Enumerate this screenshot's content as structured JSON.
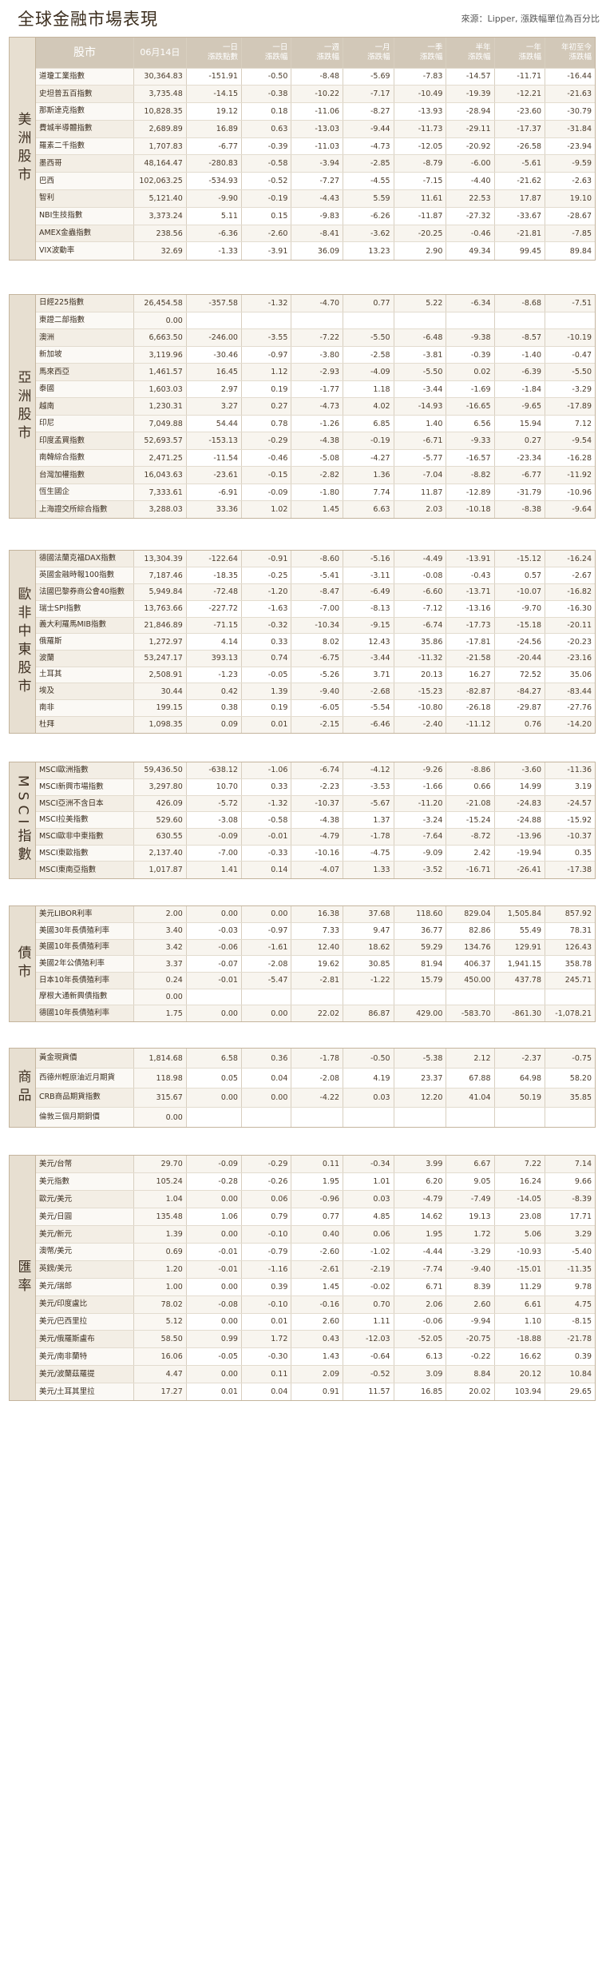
{
  "title": "全球金融市場表現",
  "source": "來源：Lipper, 漲跌幅單位為百分比",
  "header": {
    "name": "股市",
    "date": "06月14日",
    "cols": [
      "一日\n漲跌點數",
      "一日\n漲跌幅",
      "一週\n漲跌幅",
      "一月\n漲跌幅",
      "一季\n漲跌幅",
      "半年\n漲跌幅",
      "一年\n漲跌幅",
      "年初至今\n漲跌幅"
    ]
  },
  "sections": [
    {
      "label": "美洲股市",
      "rows": [
        [
          "道瓊工業指數",
          "30,364.83",
          "-151.91",
          "-0.50",
          "-8.48",
          "-5.69",
          "-7.83",
          "-14.57",
          "-11.71",
          "-16.44"
        ],
        [
          "史坦普五百指數",
          "3,735.48",
          "-14.15",
          "-0.38",
          "-10.22",
          "-7.17",
          "-10.49",
          "-19.39",
          "-12.21",
          "-21.63"
        ],
        [
          "那斯達克指數",
          "10,828.35",
          "19.12",
          "0.18",
          "-11.06",
          "-8.27",
          "-13.93",
          "-28.94",
          "-23.60",
          "-30.79"
        ],
        [
          "費城半導體指數",
          "2,689.89",
          "16.89",
          "0.63",
          "-13.03",
          "-9.44",
          "-11.73",
          "-29.11",
          "-17.37",
          "-31.84"
        ],
        [
          "羅素二千指數",
          "1,707.83",
          "-6.77",
          "-0.39",
          "-11.03",
          "-4.73",
          "-12.05",
          "-20.92",
          "-26.58",
          "-23.94"
        ],
        [
          "墨西哥",
          "48,164.47",
          "-280.83",
          "-0.58",
          "-3.94",
          "-2.85",
          "-8.79",
          "-6.00",
          "-5.61",
          "-9.59"
        ],
        [
          "巴西",
          "102,063.25",
          "-534.93",
          "-0.52",
          "-7.27",
          "-4.55",
          "-7.15",
          "-4.40",
          "-21.62",
          "-2.63"
        ],
        [
          "智利",
          "5,121.40",
          "-9.90",
          "-0.19",
          "-4.43",
          "5.59",
          "11.61",
          "22.53",
          "17.87",
          "19.10"
        ],
        [
          "NBI生技指數",
          "3,373.24",
          "5.11",
          "0.15",
          "-9.83",
          "-6.26",
          "-11.87",
          "-27.32",
          "-33.67",
          "-28.67"
        ],
        [
          "AMEX金蟲指數",
          "238.56",
          "-6.36",
          "-2.60",
          "-8.41",
          "-3.62",
          "-20.25",
          "-0.46",
          "-21.81",
          "-7.85"
        ],
        [
          "VIX波動率",
          "32.69",
          "-1.33",
          "-3.91",
          "36.09",
          "13.23",
          "2.90",
          "49.34",
          "99.45",
          "89.84"
        ]
      ]
    },
    {
      "label": "亞洲股市",
      "rows": [
        [
          "日經225指數",
          "26,454.58",
          "-357.58",
          "-1.32",
          "-4.70",
          "0.77",
          "5.22",
          "-6.34",
          "-8.68",
          "-7.51"
        ],
        [
          "東證二部指數",
          "0.00",
          "",
          "",
          "",
          "",
          "",
          "",
          "",
          ""
        ],
        [
          "澳洲",
          "6,663.50",
          "-246.00",
          "-3.55",
          "-7.22",
          "-5.50",
          "-6.48",
          "-9.38",
          "-8.57",
          "-10.19"
        ],
        [
          "新加坡",
          "3,119.96",
          "-30.46",
          "-0.97",
          "-3.80",
          "-2.58",
          "-3.81",
          "-0.39",
          "-1.40",
          "-0.47"
        ],
        [
          "馬來西亞",
          "1,461.57",
          "16.45",
          "1.12",
          "-2.93",
          "-4.09",
          "-5.50",
          "0.02",
          "-6.39",
          "-5.50"
        ],
        [
          "泰國",
          "1,603.03",
          "2.97",
          "0.19",
          "-1.77",
          "1.18",
          "-3.44",
          "-1.69",
          "-1.84",
          "-3.29"
        ],
        [
          "越南",
          "1,230.31",
          "3.27",
          "0.27",
          "-4.73",
          "4.02",
          "-14.93",
          "-16.65",
          "-9.65",
          "-17.89"
        ],
        [
          "印尼",
          "7,049.88",
          "54.44",
          "0.78",
          "-1.26",
          "6.85",
          "1.40",
          "6.56",
          "15.94",
          "7.12"
        ],
        [
          "印度孟買指數",
          "52,693.57",
          "-153.13",
          "-0.29",
          "-4.38",
          "-0.19",
          "-6.71",
          "-9.33",
          "0.27",
          "-9.54"
        ],
        [
          "南韓綜合指數",
          "2,471.25",
          "-11.54",
          "-0.46",
          "-5.08",
          "-4.27",
          "-5.77",
          "-16.57",
          "-23.34",
          "-16.28"
        ],
        [
          "台灣加權指數",
          "16,043.63",
          "-23.61",
          "-0.15",
          "-2.82",
          "1.36",
          "-7.04",
          "-8.82",
          "-6.77",
          "-11.92"
        ],
        [
          "恆生國企",
          "7,333.61",
          "-6.91",
          "-0.09",
          "-1.80",
          "7.74",
          "11.87",
          "-12.89",
          "-31.79",
          "-10.96"
        ],
        [
          "上海證交所綜合指數",
          "3,288.03",
          "33.36",
          "1.02",
          "1.45",
          "6.63",
          "2.03",
          "-10.18",
          "-8.38",
          "-9.64"
        ]
      ]
    },
    {
      "label": "歐非中東股市",
      "rows": [
        [
          "德國法蘭克福DAX指數",
          "13,304.39",
          "-122.64",
          "-0.91",
          "-8.60",
          "-5.16",
          "-4.49",
          "-13.91",
          "-15.12",
          "-16.24"
        ],
        [
          "英國金融時報100指數",
          "7,187.46",
          "-18.35",
          "-0.25",
          "-5.41",
          "-3.11",
          "-0.08",
          "-0.43",
          "0.57",
          "-2.67"
        ],
        [
          "法國巴黎券商公會40指數",
          "5,949.84",
          "-72.48",
          "-1.20",
          "-8.47",
          "-6.49",
          "-6.60",
          "-13.71",
          "-10.07",
          "-16.82"
        ],
        [
          "瑞士SPI指數",
          "13,763.66",
          "-227.72",
          "-1.63",
          "-7.00",
          "-8.13",
          "-7.12",
          "-13.16",
          "-9.70",
          "-16.30"
        ],
        [
          "義大利羅馬MIB指數",
          "21,846.89",
          "-71.15",
          "-0.32",
          "-10.34",
          "-9.15",
          "-6.74",
          "-17.73",
          "-15.18",
          "-20.11"
        ],
        [
          "俄羅斯",
          "1,272.97",
          "4.14",
          "0.33",
          "8.02",
          "12.43",
          "35.86",
          "-17.81",
          "-24.56",
          "-20.23"
        ],
        [
          "波蘭",
          "53,247.17",
          "393.13",
          "0.74",
          "-6.75",
          "-3.44",
          "-11.32",
          "-21.58",
          "-20.44",
          "-23.16"
        ],
        [
          "土耳其",
          "2,508.91",
          "-1.23",
          "-0.05",
          "-5.26",
          "3.71",
          "20.13",
          "16.27",
          "72.52",
          "35.06"
        ],
        [
          "埃及",
          "30.44",
          "0.42",
          "1.39",
          "-9.40",
          "-2.68",
          "-15.23",
          "-82.87",
          "-84.27",
          "-83.44"
        ],
        [
          "南非",
          "199.15",
          "0.38",
          "0.19",
          "-6.05",
          "-5.54",
          "-10.80",
          "-26.18",
          "-29.87",
          "-27.76"
        ],
        [
          "杜拜",
          "1,098.35",
          "0.09",
          "0.01",
          "-2.15",
          "-6.46",
          "-2.40",
          "-11.12",
          "0.76",
          "-14.20"
        ]
      ]
    },
    {
      "label": "MSCI指數",
      "rows": [
        [
          "MSCI歐洲指數",
          "59,436.50",
          "-638.12",
          "-1.06",
          "-6.74",
          "-4.12",
          "-9.26",
          "-8.86",
          "-3.60",
          "-11.36"
        ],
        [
          "MSCI新興市場指數",
          "3,297.80",
          "10.70",
          "0.33",
          "-2.23",
          "-3.53",
          "-1.66",
          "0.66",
          "14.99",
          "3.19"
        ],
        [
          "MSCI亞洲不含日本",
          "426.09",
          "-5.72",
          "-1.32",
          "-10.37",
          "-5.67",
          "-11.20",
          "-21.08",
          "-24.83",
          "-24.57"
        ],
        [
          "MSCI拉美指數",
          "529.60",
          "-3.08",
          "-0.58",
          "-4.38",
          "1.37",
          "-3.24",
          "-15.24",
          "-24.88",
          "-15.92"
        ],
        [
          "MSCI歐非中東指數",
          "630.55",
          "-0.09",
          "-0.01",
          "-4.79",
          "-1.78",
          "-7.64",
          "-8.72",
          "-13.96",
          "-10.37"
        ],
        [
          "MSCI東歐指數",
          "2,137.40",
          "-7.00",
          "-0.33",
          "-10.16",
          "-4.75",
          "-9.09",
          "2.42",
          "-19.94",
          "0.35"
        ],
        [
          "MSCI東南亞指數",
          "1,017.87",
          "1.41",
          "0.14",
          "-4.07",
          "1.33",
          "-3.52",
          "-16.71",
          "-26.41",
          "-17.38"
        ]
      ]
    },
    {
      "label": "債市",
      "rows": [
        [
          "美元LIBOR利率",
          "2.00",
          "0.00",
          "0.00",
          "16.38",
          "37.68",
          "118.60",
          "829.04",
          "1,505.84",
          "857.92"
        ],
        [
          "美國30年長債殖利率",
          "3.40",
          "-0.03",
          "-0.97",
          "7.33",
          "9.47",
          "36.77",
          "82.86",
          "55.49",
          "78.31"
        ],
        [
          "美國10年長債殖利率",
          "3.42",
          "-0.06",
          "-1.61",
          "12.40",
          "18.62",
          "59.29",
          "134.76",
          "129.91",
          "126.43"
        ],
        [
          "美國2年公債殖利率",
          "3.37",
          "-0.07",
          "-2.08",
          "19.62",
          "30.85",
          "81.94",
          "406.37",
          "1,941.15",
          "358.78"
        ],
        [
          "日本10年長債殖利率",
          "0.24",
          "-0.01",
          "-5.47",
          "-2.81",
          "-1.22",
          "15.79",
          "450.00",
          "437.78",
          "245.71"
        ],
        [
          "摩根大通新興債指數",
          "0.00",
          "",
          "",
          "",
          "",
          "",
          "",
          "",
          ""
        ],
        [
          "德國10年長債殖利率",
          "1.75",
          "0.00",
          "0.00",
          "22.02",
          "86.87",
          "429.00",
          "-583.70",
          "-861.30",
          "-1,078.21"
        ]
      ]
    },
    {
      "label": "商品",
      "rows": [
        [
          "黃金現貨價",
          "1,814.68",
          "6.58",
          "0.36",
          "-1.78",
          "-0.50",
          "-5.38",
          "2.12",
          "-2.37",
          "-0.75"
        ],
        [
          "西德州輕原油近月期貨",
          "118.98",
          "0.05",
          "0.04",
          "-2.08",
          "4.19",
          "23.37",
          "67.88",
          "64.98",
          "58.20"
        ],
        [
          "CRB商品期貨指數",
          "315.67",
          "0.00",
          "0.00",
          "-4.22",
          "0.03",
          "12.20",
          "41.04",
          "50.19",
          "35.85"
        ],
        [
          "倫敦三個月期銅價",
          "0.00",
          "",
          "",
          "",
          "",
          "",
          "",
          "",
          ""
        ]
      ]
    },
    {
      "label": "匯率",
      "rows": [
        [
          "美元/台幣",
          "29.70",
          "-0.09",
          "-0.29",
          "0.11",
          "-0.34",
          "3.99",
          "6.67",
          "7.22",
          "7.14"
        ],
        [
          "美元指數",
          "105.24",
          "-0.28",
          "-0.26",
          "1.95",
          "1.01",
          "6.20",
          "9.05",
          "16.24",
          "9.66"
        ],
        [
          "歐元/美元",
          "1.04",
          "0.00",
          "0.06",
          "-0.96",
          "0.03",
          "-4.79",
          "-7.49",
          "-14.05",
          "-8.39"
        ],
        [
          "美元/日圓",
          "135.48",
          "1.06",
          "0.79",
          "0.77",
          "4.85",
          "14.62",
          "19.13",
          "23.08",
          "17.71"
        ],
        [
          "美元/新元",
          "1.39",
          "0.00",
          "-0.10",
          "0.40",
          "0.06",
          "1.95",
          "1.72",
          "5.06",
          "3.29"
        ],
        [
          "澳幣/美元",
          "0.69",
          "-0.01",
          "-0.79",
          "-2.60",
          "-1.02",
          "-4.44",
          "-3.29",
          "-10.93",
          "-5.40"
        ],
        [
          "英鎊/美元",
          "1.20",
          "-0.01",
          "-1.16",
          "-2.61",
          "-2.19",
          "-7.74",
          "-9.40",
          "-15.01",
          "-11.35"
        ],
        [
          "美元/瑞郎",
          "1.00",
          "0.00",
          "0.39",
          "1.45",
          "-0.02",
          "6.71",
          "8.39",
          "11.29",
          "9.78"
        ],
        [
          "美元/印度盧比",
          "78.02",
          "-0.08",
          "-0.10",
          "-0.16",
          "0.70",
          "2.06",
          "2.60",
          "6.61",
          "4.75"
        ],
        [
          "美元/巴西里拉",
          "5.12",
          "0.00",
          "0.01",
          "2.60",
          "1.11",
          "-0.06",
          "-9.94",
          "1.10",
          "-8.15"
        ],
        [
          "美元/俄羅斯盧布",
          "58.50",
          "0.99",
          "1.72",
          "0.43",
          "-12.03",
          "-52.05",
          "-20.75",
          "-18.88",
          "-21.78"
        ],
        [
          "美元/南非蘭特",
          "16.06",
          "-0.05",
          "-0.30",
          "1.43",
          "-0.64",
          "6.13",
          "-0.22",
          "16.62",
          "0.39"
        ],
        [
          "美元/波蘭茲羅提",
          "4.47",
          "0.00",
          "0.11",
          "2.09",
          "-0.52",
          "3.09",
          "8.84",
          "20.12",
          "10.84"
        ],
        [
          "美元/土耳其里拉",
          "17.27",
          "0.01",
          "0.04",
          "0.91",
          "11.57",
          "16.85",
          "20.02",
          "103.94",
          "29.65"
        ]
      ]
    }
  ]
}
